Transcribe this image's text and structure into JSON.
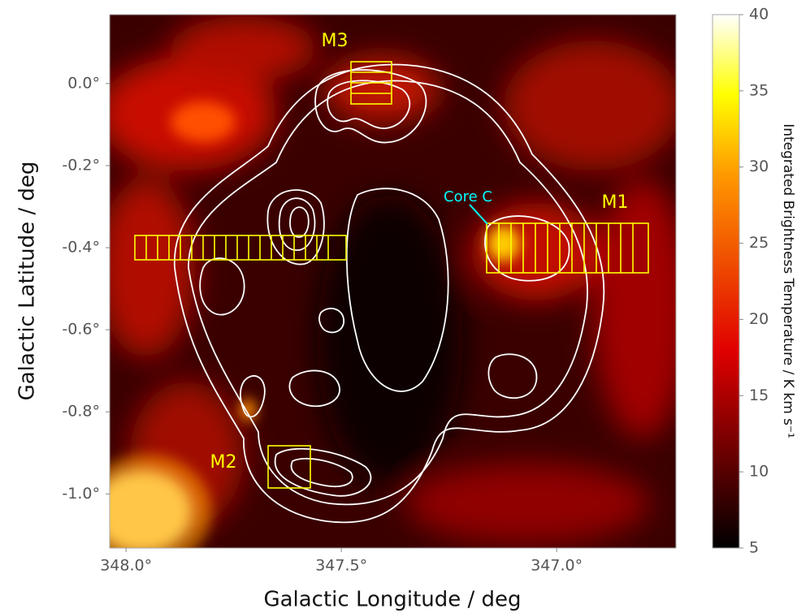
{
  "chart_data": {
    "type": "heatmap",
    "xlabel": "Galactic Longitude / deg",
    "ylabel": "Galactic Latitude / deg",
    "xlim": [
      348.038,
      346.723
    ],
    "ylim": [
      -1.132,
      0.168
    ],
    "xticks": [
      {
        "value": 348.0,
        "label": "348.0°"
      },
      {
        "value": 347.5,
        "label": "347.5°"
      },
      {
        "value": 347.0,
        "label": "347.0°"
      }
    ],
    "yticks": [
      {
        "value": 0.0,
        "label": "0.0°"
      },
      {
        "value": -0.2,
        "label": "-0.2°"
      },
      {
        "value": -0.4,
        "label": "-0.4°"
      },
      {
        "value": -0.6,
        "label": "-0.6°"
      },
      {
        "value": -0.8,
        "label": "-0.8°"
      },
      {
        "value": -1.0,
        "label": "-1.0°"
      }
    ],
    "colorbar": {
      "label": "Integrated Brightness Temperature / K km s⁻¹",
      "lim": [
        5,
        40
      ],
      "ticks": [
        5,
        10,
        15,
        20,
        25,
        30,
        35,
        40
      ]
    },
    "annotations": [
      "M1",
      "M2",
      "M3",
      "Core C"
    ]
  }
}
